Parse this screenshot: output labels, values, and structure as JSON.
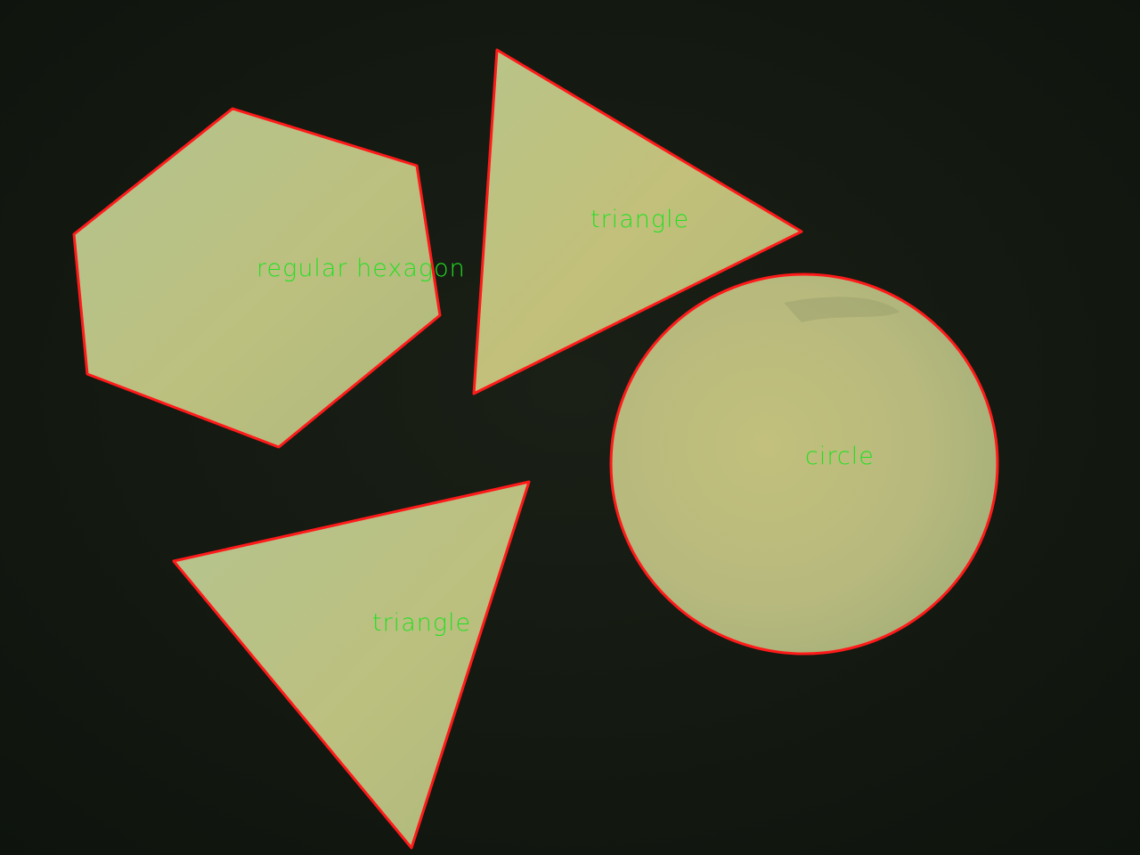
{
  "colors": {
    "background": "#131811",
    "paper": "#bcc283",
    "contour": "#ff1a1a",
    "label": "#22e022"
  },
  "detections": [
    {
      "id": "hexagon",
      "label": "regular hexagon"
    },
    {
      "id": "triangle-top",
      "label": "triangle"
    },
    {
      "id": "circle",
      "label": "circle"
    },
    {
      "id": "triangle-bottom",
      "label": "triangle"
    }
  ]
}
